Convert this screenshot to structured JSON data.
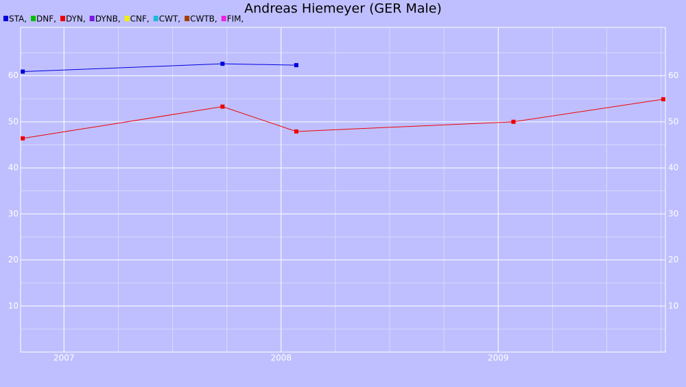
{
  "chart_data": {
    "type": "line",
    "title": "Andreas Hiemeyer (GER Male)",
    "series": [
      {
        "name": "STA,",
        "color": "#0000dd",
        "x": [
          2006.81,
          2007.73,
          2008.07
        ],
        "values": [
          60.9,
          62.6,
          62.3
        ]
      },
      {
        "name": "DNF,",
        "color": "#00c000",
        "x": [],
        "values": []
      },
      {
        "name": "DYN,",
        "color": "#ee0000",
        "x": [
          2006.81,
          2007.73,
          2008.07,
          2009.07,
          2009.76
        ],
        "values": [
          46.4,
          53.3,
          47.9,
          50.0,
          54.9
        ]
      },
      {
        "name": "DYNB,",
        "color": "#7a1ae6",
        "x": [],
        "values": []
      },
      {
        "name": "CNF,",
        "color": "#f0f000",
        "x": [],
        "values": []
      },
      {
        "name": "CWT,",
        "color": "#20b8d8",
        "x": [],
        "values": []
      },
      {
        "name": "CWTB,",
        "color": "#a04000",
        "x": [],
        "values": []
      },
      {
        "name": "FIM,",
        "color": "#f020e0",
        "x": [],
        "values": []
      }
    ],
    "xlim": [
      2006.8,
      2009.77
    ],
    "xticks": [
      2007,
      2008,
      2009
    ],
    "ylim": [
      0,
      70.5
    ],
    "yticks": [
      10,
      20,
      30,
      40,
      50,
      60
    ],
    "y2lim": [
      0,
      70.5
    ],
    "y2ticks": [
      10,
      20,
      30,
      40,
      50,
      60
    ],
    "grid": true
  }
}
